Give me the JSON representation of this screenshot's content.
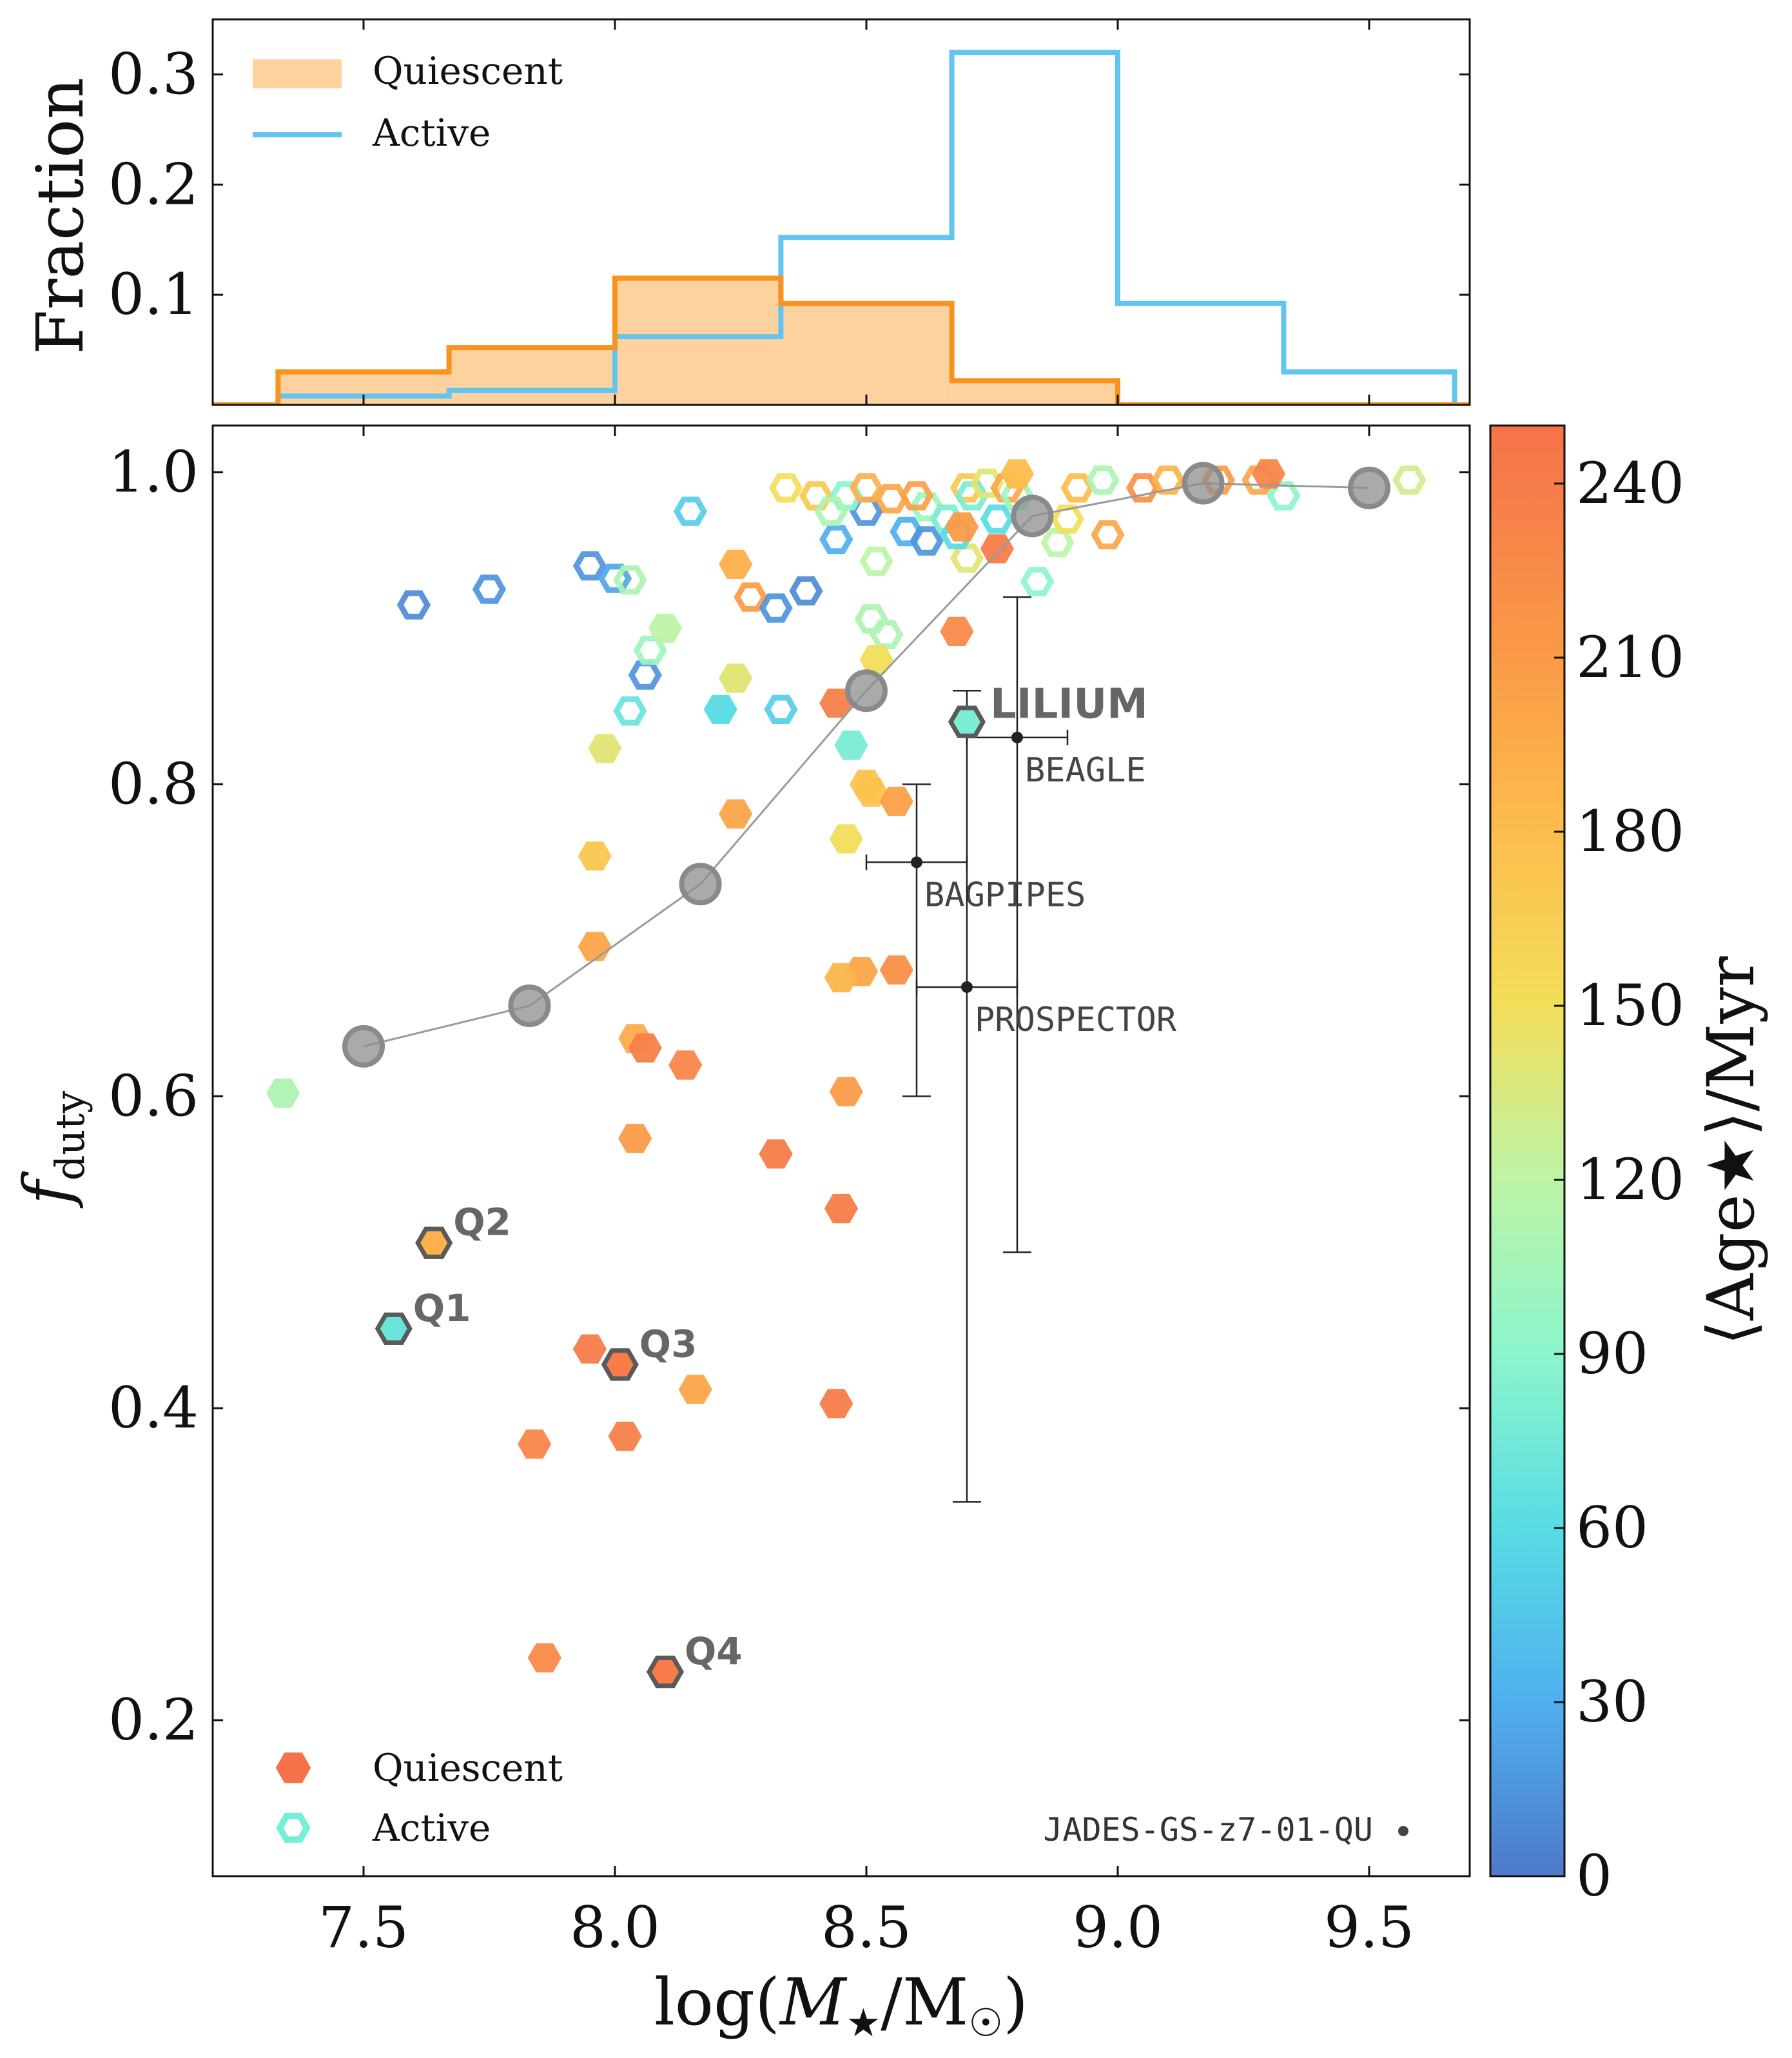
{
  "chart_data": [
    {
      "type": "histogram",
      "panel": "top",
      "ylabel": "Fraction",
      "yticks": [
        "0.1",
        "0.2",
        "0.3"
      ],
      "ylim": [
        0,
        0.35
      ],
      "xlim": [
        7.2,
        9.7
      ],
      "legend": {
        "quiescent": "Quiescent",
        "active": "Active",
        "position": "top-left"
      },
      "bin_edges": [
        7.33,
        7.67,
        8.0,
        8.33,
        8.67,
        9.0,
        9.33,
        9.67
      ],
      "series": [
        {
          "name": "Quiescent",
          "style": "filled",
          "color": "#F7931E",
          "fill": "#FDD29F",
          "values": [
            0.03,
            0.052,
            0.115,
            0.092,
            0.022,
            0.0,
            0.0
          ]
        },
        {
          "name": "Active",
          "style": "step",
          "color": "#63C4F0",
          "values": [
            0.008,
            0.013,
            0.062,
            0.152,
            0.32,
            0.092,
            0.03
          ]
        }
      ]
    },
    {
      "type": "scatter",
      "panel": "main",
      "xlabel": "log(M★/M☉)",
      "ylabel": "f_duty",
      "xticks": [
        "7.5",
        "8.0",
        "8.5",
        "9.0",
        "9.5"
      ],
      "yticks": [
        "0.2",
        "0.4",
        "0.6",
        "0.8",
        "1.0"
      ],
      "xlim": [
        7.2,
        9.7
      ],
      "ylim": [
        0.1,
        1.03
      ],
      "colorbar": {
        "label": "⟨Age★⟩/Myr",
        "min": 0,
        "max": 250,
        "ticks": [
          "0",
          "30",
          "60",
          "90",
          "120",
          "150",
          "180",
          "210",
          "240"
        ]
      },
      "legend": {
        "quiescent": "Quiescent",
        "active": "Active",
        "position": "bottom-left"
      },
      "running_median": [
        [
          7.5,
          0.632
        ],
        [
          7.83,
          0.658
        ],
        [
          8.17,
          0.736
        ],
        [
          8.5,
          0.86
        ],
        [
          8.83,
          0.972
        ],
        [
          9.17,
          0.993
        ],
        [
          9.5,
          0.99
        ]
      ],
      "quiescent": [
        [
          7.34,
          0.602,
          110
        ],
        [
          7.98,
          0.823,
          140
        ],
        [
          8.1,
          0.9,
          120
        ],
        [
          7.96,
          0.754,
          170
        ],
        [
          7.96,
          0.696,
          200
        ],
        [
          8.04,
          0.637,
          195
        ],
        [
          8.06,
          0.631,
          235
        ],
        [
          8.14,
          0.62,
          230
        ],
        [
          8.04,
          0.573,
          210
        ],
        [
          8.32,
          0.563,
          240
        ],
        [
          8.24,
          0.941,
          190
        ],
        [
          8.24,
          0.868,
          140
        ],
        [
          8.24,
          0.781,
          200
        ],
        [
          8.44,
          0.852,
          235
        ],
        [
          8.46,
          0.765,
          150
        ],
        [
          8.5,
          0.8,
          175
        ],
        [
          8.51,
          0.795,
          175
        ],
        [
          8.56,
          0.789,
          205
        ],
        [
          8.49,
          0.68,
          200
        ],
        [
          8.45,
          0.676,
          185
        ],
        [
          8.56,
          0.681,
          220
        ],
        [
          8.46,
          0.603,
          210
        ],
        [
          8.45,
          0.528,
          240
        ],
        [
          8.68,
          0.898,
          225
        ],
        [
          8.52,
          0.88,
          150
        ],
        [
          8.76,
          0.951,
          240
        ],
        [
          8.69,
          0.965,
          210
        ],
        [
          7.95,
          0.438,
          240
        ],
        [
          8.02,
          0.382,
          235
        ],
        [
          8.16,
          0.412,
          200
        ],
        [
          7.84,
          0.377,
          230
        ],
        [
          8.44,
          0.403,
          240
        ],
        [
          7.86,
          0.24,
          225
        ],
        [
          8.47,
          0.825,
          80
        ],
        [
          8.21,
          0.848,
          60
        ],
        [
          8.8,
          0.999,
          180
        ],
        [
          9.3,
          0.999,
          230
        ]
      ],
      "active": [
        [
          7.6,
          0.915,
          10
        ],
        [
          7.75,
          0.925,
          15
        ],
        [
          7.95,
          0.94,
          15
        ],
        [
          8.0,
          0.932,
          25
        ],
        [
          8.03,
          0.931,
          110
        ],
        [
          8.06,
          0.87,
          15
        ],
        [
          8.07,
          0.886,
          100
        ],
        [
          8.03,
          0.847,
          70
        ],
        [
          8.15,
          0.975,
          50
        ],
        [
          8.33,
          0.848,
          50
        ],
        [
          8.27,
          0.92,
          210
        ],
        [
          8.32,
          0.913,
          15
        ],
        [
          8.38,
          0.924,
          10
        ],
        [
          8.44,
          0.957,
          30
        ],
        [
          8.5,
          0.975,
          15
        ],
        [
          8.51,
          0.906,
          110
        ],
        [
          8.54,
          0.896,
          110
        ],
        [
          8.52,
          0.943,
          120
        ],
        [
          8.58,
          0.962,
          30
        ],
        [
          8.62,
          0.956,
          15
        ],
        [
          8.4,
          0.985,
          170
        ],
        [
          8.46,
          0.985,
          90
        ],
        [
          8.5,
          0.99,
          190
        ],
        [
          8.55,
          0.983,
          200
        ],
        [
          8.62,
          0.978,
          100
        ],
        [
          8.7,
          0.99,
          170
        ],
        [
          8.71,
          0.985,
          80
        ],
        [
          8.74,
          0.993,
          140
        ],
        [
          8.76,
          0.97,
          60
        ],
        [
          8.78,
          0.99,
          200
        ],
        [
          8.8,
          0.985,
          100
        ],
        [
          8.84,
          0.93,
          90
        ],
        [
          8.88,
          0.955,
          120
        ],
        [
          8.92,
          0.99,
          180
        ],
        [
          8.97,
          0.995,
          110
        ],
        [
          9.05,
          0.99,
          220
        ],
        [
          9.1,
          0.995,
          190
        ],
        [
          9.2,
          0.995,
          210
        ],
        [
          9.28,
          0.995,
          200
        ],
        [
          9.33,
          0.985,
          90
        ],
        [
          9.58,
          0.995,
          130
        ],
        [
          8.98,
          0.96,
          200
        ],
        [
          8.43,
          0.975,
          110
        ],
        [
          8.7,
          0.945,
          140
        ],
        [
          8.66,
          0.97,
          80
        ],
        [
          8.9,
          0.97,
          150
        ],
        [
          8.34,
          0.99,
          150
        ],
        [
          8.6,
          0.985,
          205
        ],
        [
          8.68,
          0.96,
          60
        ]
      ],
      "labeled_points": [
        {
          "label": "Q1",
          "x": 7.56,
          "y": 0.451,
          "age": 70
        },
        {
          "label": "Q2",
          "x": 7.64,
          "y": 0.506,
          "age": 190
        },
        {
          "label": "Q3",
          "x": 8.01,
          "y": 0.428,
          "age": 240
        },
        {
          "label": "Q4",
          "x": 8.1,
          "y": 0.231,
          "age": 240
        },
        {
          "label": "LILIUM",
          "x": 8.7,
          "y": 0.84,
          "age": 80
        }
      ],
      "errorbars": [
        {
          "label": "BEAGLE",
          "x": 8.8,
          "y": 0.83,
          "xerr": [
            0.1,
            0.1
          ],
          "yerr": [
            0.33,
            0.09
          ]
        },
        {
          "label": "BAGPIPES",
          "x": 8.6,
          "y": 0.75,
          "xerr": [
            0.1,
            0.1
          ],
          "yerr": [
            0.15,
            0.05
          ]
        },
        {
          "label": "PROSPECTOR",
          "x": 8.7,
          "y": 0.67,
          "xerr": [
            0.1,
            0.1
          ],
          "yerr": [
            0.33,
            0.19
          ]
        }
      ],
      "source_label": "JADES-GS-z7-01-QU"
    }
  ]
}
